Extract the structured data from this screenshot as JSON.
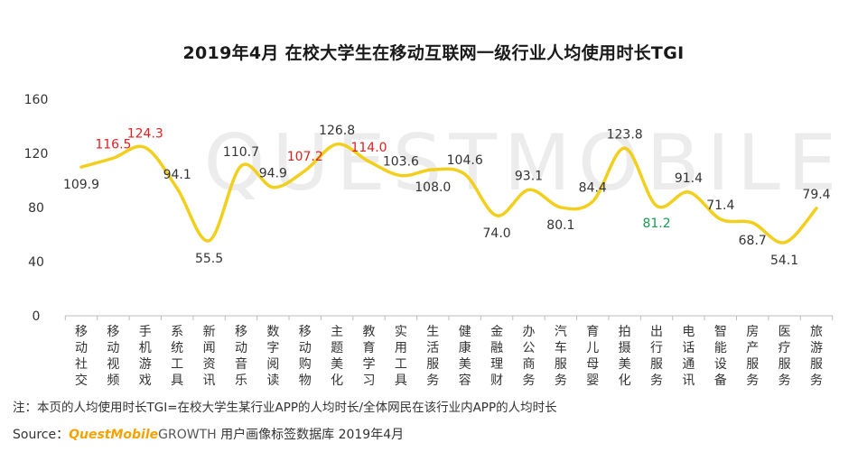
{
  "chart_data": {
    "type": "line",
    "title": "2019年4月 在校大学生在移动互联网一级行业人均使用时长TGI",
    "categories": [
      [
        "移",
        "动",
        "社",
        "交"
      ],
      [
        "移",
        "动",
        "视",
        "频"
      ],
      [
        "手",
        "机",
        "游",
        "戏"
      ],
      [
        "系",
        "统",
        "工",
        "具"
      ],
      [
        "新",
        "闻",
        "资",
        "讯"
      ],
      [
        "移",
        "动",
        "音",
        "乐"
      ],
      [
        "数",
        "字",
        "阅",
        "读"
      ],
      [
        "移",
        "动",
        "购",
        "物"
      ],
      [
        "主",
        "题",
        "美",
        "化"
      ],
      [
        "教",
        "育",
        "学",
        "习"
      ],
      [
        "实",
        "用",
        "工",
        "具"
      ],
      [
        "生",
        "活",
        "服",
        "务"
      ],
      [
        "健",
        "康",
        "美",
        "容"
      ],
      [
        "金",
        "融",
        "理",
        "财"
      ],
      [
        "办",
        "公",
        "商",
        "务"
      ],
      [
        "汽",
        "车",
        "服",
        "务"
      ],
      [
        "育",
        "儿",
        "母",
        "婴"
      ],
      [
        "拍",
        "摄",
        "美",
        "化"
      ],
      [
        "出",
        "行",
        "服",
        "务"
      ],
      [
        "电",
        "话",
        "通",
        "讯"
      ],
      [
        "智",
        "能",
        "设",
        "备"
      ],
      [
        "房",
        "产",
        "服",
        "务"
      ],
      [
        "医",
        "疗",
        "服",
        "务"
      ],
      [
        "旅",
        "游",
        "服",
        "务"
      ]
    ],
    "values": [
      109.9,
      116.5,
      124.3,
      94.1,
      55.5,
      110.7,
      94.9,
      107.2,
      126.8,
      114.0,
      103.6,
      108.0,
      104.6,
      74.0,
      93.1,
      80.1,
      84.4,
      123.8,
      81.2,
      91.4,
      71.4,
      68.7,
      54.1,
      79.4
    ],
    "value_labels": [
      "109.9",
      "116.5",
      "124.3",
      "94.1",
      "55.5",
      "110.7",
      "94.9",
      "107.2",
      "126.8",
      "114.0",
      "103.6",
      "108.0",
      "104.6",
      "74.0",
      "93.1",
      "80.1",
      "84.4",
      "123.8",
      "81.2",
      "91.4",
      "71.4",
      "68.7",
      "54.1",
      "79.4"
    ],
    "label_below": [
      true,
      false,
      false,
      false,
      true,
      false,
      false,
      false,
      false,
      false,
      false,
      true,
      false,
      true,
      false,
      true,
      false,
      false,
      true,
      false,
      false,
      true,
      true,
      false
    ],
    "label_color": [
      "#333333",
      "#e02020",
      "#e02020",
      "#333333",
      "#333333",
      "#333333",
      "#333333",
      "#e02020",
      "#333333",
      "#e02020",
      "#333333",
      "#333333",
      "#333333",
      "#333333",
      "#333333",
      "#333333",
      "#333333",
      "#333333",
      "#1a9a55",
      "#333333",
      "#333333",
      "#333333",
      "#333333",
      "#333333"
    ],
    "ylim": [
      0,
      160
    ],
    "yticks": [
      "0",
      "40",
      "80",
      "120",
      "160"
    ],
    "ytick_values": [
      0,
      40,
      80,
      120,
      160
    ],
    "line_color": "#f2cf1d",
    "grid": false
  },
  "note": "注：本页的人均使用时长TGI=在校大学生某行业APP的人均时长/全体网民在该行业内APP的人均时长",
  "source": {
    "prefix": "Source：",
    "brand": "QuestMobile",
    "growth": "GROWTH",
    "rest": " 用户画像标签数据库  2019年4月"
  },
  "watermark": "QUESTMOBILE"
}
